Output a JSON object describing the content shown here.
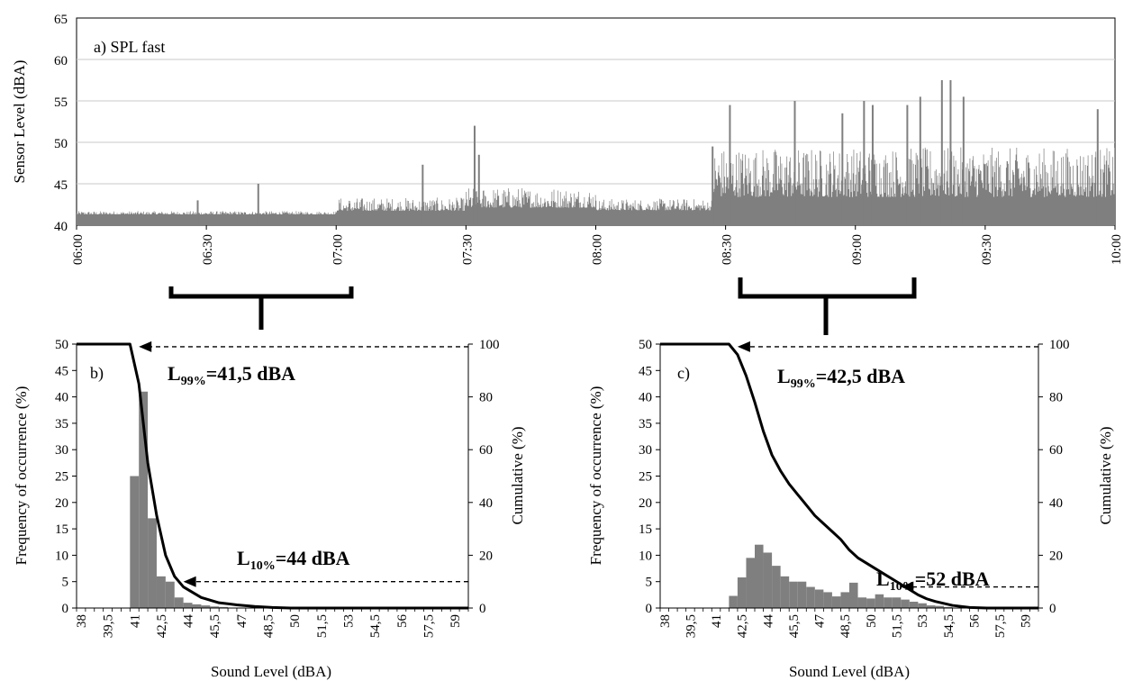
{
  "figure": {
    "series_color": "#7f7f7f",
    "line_color": "#000000",
    "grid_color": "#c8c8c8"
  },
  "chart_data": [
    {
      "id": "a",
      "type": "bar",
      "panel_label": "a) SPL fast",
      "ylabel": "Sensor Level (dBA)",
      "xlabel": "",
      "ylim": [
        40,
        65
      ],
      "yticks": [
        40,
        45,
        50,
        55,
        60,
        65
      ],
      "x_range_minutes": [
        0,
        240
      ],
      "xticks": [
        "06:00",
        "06:30",
        "07:00",
        "07:30",
        "08:00",
        "08:30",
        "09:00",
        "09:30",
        "10:00"
      ],
      "grid": "horizontal",
      "legend": "none",
      "spikes": [
        {
          "t": "06:42",
          "v": 45.0
        },
        {
          "t": "06:28",
          "v": 43.0
        },
        {
          "t": "07:20",
          "v": 47.3
        },
        {
          "t": "07:32",
          "v": 52.0
        },
        {
          "t": "07:33",
          "v": 48.5
        },
        {
          "t": "08:27",
          "v": 49.5
        },
        {
          "t": "08:31",
          "v": 54.5
        },
        {
          "t": "08:46",
          "v": 55.0
        },
        {
          "t": "08:57",
          "v": 53.5
        },
        {
          "t": "09:02",
          "v": 55.0
        },
        {
          "t": "09:04",
          "v": 54.5
        },
        {
          "t": "09:12",
          "v": 54.5
        },
        {
          "t": "09:15",
          "v": 55.5
        },
        {
          "t": "09:20",
          "v": 57.5
        },
        {
          "t": "09:22",
          "v": 57.5
        },
        {
          "t": "09:25",
          "v": 55.5
        },
        {
          "t": "09:56",
          "v": 54.0
        }
      ],
      "segments": [
        {
          "from": "06:00",
          "to": "07:00",
          "base": 41.5,
          "jitter": 0.4
        },
        {
          "from": "07:00",
          "to": "07:30",
          "base": 42.3,
          "jitter": 1.6
        },
        {
          "from": "07:30",
          "to": "08:00",
          "base": 43.0,
          "jitter": 2.5
        },
        {
          "from": "08:00",
          "to": "08:27",
          "base": 42.3,
          "jitter": 1.4
        },
        {
          "from": "08:27",
          "to": "10:00",
          "base": 45.5,
          "jitter": 6.0
        }
      ]
    },
    {
      "id": "b",
      "type": "bar+line",
      "panel_label": "b)",
      "xlabel": "Sound Level (dBA)",
      "ylabel": "Frequency of occurrence (%)",
      "y2label": "Cumulative (%)",
      "ylim": [
        0,
        50
      ],
      "y2lim": [
        0,
        100
      ],
      "yticks": [
        0,
        5,
        10,
        15,
        20,
        25,
        30,
        35,
        40,
        45,
        50
      ],
      "y2ticks": [
        0,
        20,
        40,
        60,
        80,
        100
      ],
      "xlim": [
        38,
        60
      ],
      "xticks": [
        "38",
        "39,5",
        "41",
        "42,5",
        "44",
        "45,5",
        "47",
        "48,5",
        "50",
        "51,5",
        "53",
        "54,5",
        "56",
        "57,5",
        "59"
      ],
      "bin_width": 0.5,
      "bars": [
        {
          "x": 41.0,
          "y": 25
        },
        {
          "x": 41.5,
          "y": 41
        },
        {
          "x": 42.0,
          "y": 17
        },
        {
          "x": 42.5,
          "y": 6
        },
        {
          "x": 43.0,
          "y": 5
        },
        {
          "x": 43.5,
          "y": 2
        },
        {
          "x": 44.0,
          "y": 1
        },
        {
          "x": 44.5,
          "y": 0.7
        },
        {
          "x": 45.0,
          "y": 0.5
        },
        {
          "x": 45.5,
          "y": 0.3
        },
        {
          "x": 46.0,
          "y": 0.2
        }
      ],
      "cumulative": [
        {
          "x": 38,
          "y": 100
        },
        {
          "x": 41.0,
          "y": 100
        },
        {
          "x": 41.5,
          "y": 85
        },
        {
          "x": 42.0,
          "y": 55
        },
        {
          "x": 42.5,
          "y": 35
        },
        {
          "x": 43.0,
          "y": 20
        },
        {
          "x": 43.5,
          "y": 12
        },
        {
          "x": 44.0,
          "y": 8
        },
        {
          "x": 45.0,
          "y": 4
        },
        {
          "x": 46.0,
          "y": 2
        },
        {
          "x": 47.0,
          "y": 1.2
        },
        {
          "x": 48.0,
          "y": 0.6
        },
        {
          "x": 49.0,
          "y": 0.2
        },
        {
          "x": 50.0,
          "y": 0
        },
        {
          "x": 60.0,
          "y": 0
        }
      ],
      "annotations": [
        {
          "main": "L",
          "sub": "99%",
          "rest": "=41,5 dBA",
          "arrow_x": 41.5,
          "arrow_y2": 99
        },
        {
          "main": "L",
          "sub": "10%",
          "rest": "=44 dBA",
          "arrow_x": 44.0,
          "arrow_y2": 10
        }
      ]
    },
    {
      "id": "c",
      "type": "bar+line",
      "panel_label": "c)",
      "xlabel": "Sound Level (dBA)",
      "ylabel": "Frequency of occurrence (%)",
      "y2label": "Cumulative (%)",
      "ylim": [
        0,
        50
      ],
      "y2lim": [
        0,
        100
      ],
      "yticks": [
        0,
        5,
        10,
        15,
        20,
        25,
        30,
        35,
        40,
        45,
        50
      ],
      "y2ticks": [
        0,
        20,
        40,
        60,
        80,
        100
      ],
      "xlim": [
        38,
        60
      ],
      "xticks": [
        "38",
        "39,5",
        "41",
        "42,5",
        "44",
        "45,5",
        "47",
        "48,5",
        "50",
        "51,5",
        "53",
        "54,5",
        "56",
        "57,5",
        "59"
      ],
      "bin_width": 0.5,
      "bars": [
        {
          "x": 42.0,
          "y": 2.3
        },
        {
          "x": 42.5,
          "y": 5.8
        },
        {
          "x": 43.0,
          "y": 9.5
        },
        {
          "x": 43.5,
          "y": 12
        },
        {
          "x": 44.0,
          "y": 10.5
        },
        {
          "x": 44.5,
          "y": 8
        },
        {
          "x": 45.0,
          "y": 6
        },
        {
          "x": 45.5,
          "y": 5
        },
        {
          "x": 46.0,
          "y": 5
        },
        {
          "x": 46.5,
          "y": 4
        },
        {
          "x": 47.0,
          "y": 3.5
        },
        {
          "x": 47.5,
          "y": 3
        },
        {
          "x": 48.0,
          "y": 2.2
        },
        {
          "x": 48.5,
          "y": 3
        },
        {
          "x": 49.0,
          "y": 4.8
        },
        {
          "x": 49.5,
          "y": 2
        },
        {
          "x": 50.0,
          "y": 1.8
        },
        {
          "x": 50.5,
          "y": 2.6
        },
        {
          "x": 51.0,
          "y": 2
        },
        {
          "x": 51.5,
          "y": 2
        },
        {
          "x": 52.0,
          "y": 1.6
        },
        {
          "x": 52.5,
          "y": 1.2
        },
        {
          "x": 53.0,
          "y": 0.9
        },
        {
          "x": 53.5,
          "y": 0.5
        },
        {
          "x": 54.0,
          "y": 0.4
        },
        {
          "x": 54.5,
          "y": 0.2
        }
      ],
      "cumulative": [
        {
          "x": 38,
          "y": 100
        },
        {
          "x": 42.0,
          "y": 100
        },
        {
          "x": 42.5,
          "y": 96
        },
        {
          "x": 43.0,
          "y": 88
        },
        {
          "x": 43.5,
          "y": 78
        },
        {
          "x": 44.0,
          "y": 67
        },
        {
          "x": 44.5,
          "y": 58
        },
        {
          "x": 45.0,
          "y": 52
        },
        {
          "x": 45.5,
          "y": 47
        },
        {
          "x": 46.0,
          "y": 43
        },
        {
          "x": 46.5,
          "y": 39
        },
        {
          "x": 47.0,
          "y": 35
        },
        {
          "x": 47.5,
          "y": 32
        },
        {
          "x": 48.0,
          "y": 29
        },
        {
          "x": 48.5,
          "y": 26
        },
        {
          "x": 49.0,
          "y": 22
        },
        {
          "x": 49.5,
          "y": 19
        },
        {
          "x": 50.0,
          "y": 17
        },
        {
          "x": 50.5,
          "y": 15
        },
        {
          "x": 51.0,
          "y": 13
        },
        {
          "x": 51.5,
          "y": 11
        },
        {
          "x": 52.0,
          "y": 9
        },
        {
          "x": 52.5,
          "y": 7
        },
        {
          "x": 53.0,
          "y": 5
        },
        {
          "x": 53.5,
          "y": 3.5
        },
        {
          "x": 54.0,
          "y": 2.5
        },
        {
          "x": 55.0,
          "y": 1
        },
        {
          "x": 56.0,
          "y": 0.2
        },
        {
          "x": 57.0,
          "y": 0
        },
        {
          "x": 60.0,
          "y": 0
        }
      ],
      "annotations": [
        {
          "main": "L",
          "sub": "99%",
          "rest": "=42,5 dBA",
          "arrow_x": 42.5,
          "arrow_y2": 99
        },
        {
          "main": "L",
          "sub": "10%",
          "rest": "=52 dBA",
          "arrow_x": 52.0,
          "arrow_y2": 8
        }
      ]
    }
  ]
}
